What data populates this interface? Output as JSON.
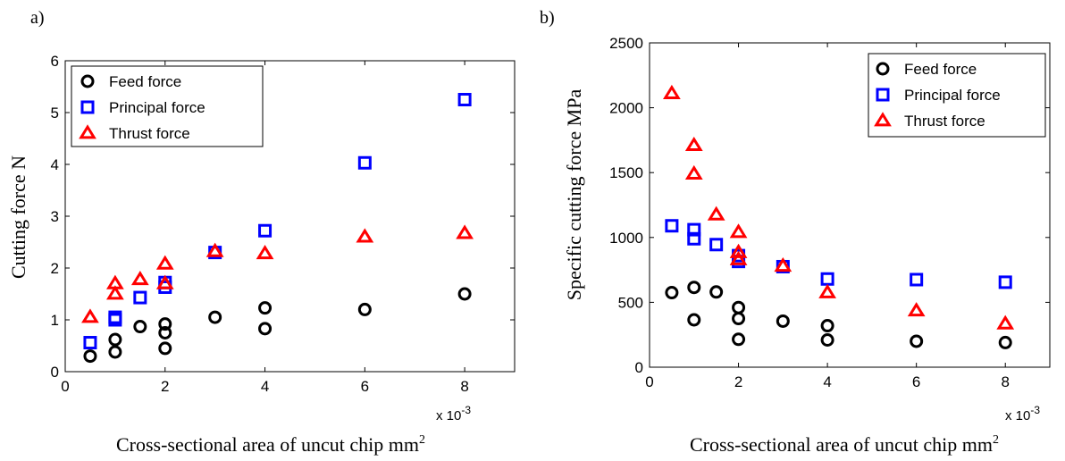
{
  "chart_data": [
    {
      "type": "scatter",
      "panel_label": "a)",
      "xlabel": "Cross-sectional area of uncut chip mm",
      "xlabel_sup": "2",
      "ylabel": "Cutting force  N",
      "x_multiplier": "x 10",
      "x_multiplier_exp": "-3",
      "xlim": [
        0,
        9
      ],
      "ylim": [
        0,
        6
      ],
      "xticks": [
        0,
        2,
        4,
        6,
        8
      ],
      "yticks": [
        0,
        1,
        2,
        3,
        4,
        5,
        6
      ],
      "legend_position": "top-left",
      "series": [
        {
          "name": "Feed force",
          "marker": "circle",
          "color": "#000000",
          "points": [
            [
              0.5,
              0.3
            ],
            [
              1,
              0.38
            ],
            [
              1,
              0.62
            ],
            [
              1.5,
              0.87
            ],
            [
              2,
              0.45
            ],
            [
              2,
              0.75
            ],
            [
              2,
              0.92
            ],
            [
              3,
              1.05
            ],
            [
              4,
              0.83
            ],
            [
              4,
              1.23
            ],
            [
              6,
              1.2
            ],
            [
              8,
              1.5
            ]
          ]
        },
        {
          "name": "Principal force",
          "marker": "square",
          "color": "#0000ff",
          "points": [
            [
              0.5,
              0.56
            ],
            [
              1,
              1.0
            ],
            [
              1,
              1.05
            ],
            [
              1.5,
              1.43
            ],
            [
              2,
              1.63
            ],
            [
              2,
              1.72
            ],
            [
              3,
              2.3
            ],
            [
              4,
              2.72
            ],
            [
              6,
              4.03
            ],
            [
              8,
              5.25
            ]
          ]
        },
        {
          "name": "Thrust force",
          "marker": "triangle",
          "color": "#ff0000",
          "points": [
            [
              0.5,
              1.05
            ],
            [
              1,
              1.5
            ],
            [
              1,
              1.7
            ],
            [
              1.5,
              1.78
            ],
            [
              2,
              1.7
            ],
            [
              2,
              2.08
            ],
            [
              3,
              2.32
            ],
            [
              4,
              2.28
            ],
            [
              6,
              2.6
            ],
            [
              8,
              2.67
            ]
          ]
        }
      ]
    },
    {
      "type": "scatter",
      "panel_label": "b)",
      "xlabel": "Cross-sectional area of uncut chip mm",
      "xlabel_sup": "2",
      "ylabel": "Specific cutting force  MPa",
      "x_multiplier": "x 10",
      "x_multiplier_exp": "-3",
      "xlim": [
        0,
        9
      ],
      "ylim": [
        0,
        2500
      ],
      "xticks": [
        0,
        2,
        4,
        6,
        8
      ],
      "yticks": [
        0,
        500,
        1000,
        1500,
        2000,
        2500
      ],
      "legend_position": "top-right",
      "series": [
        {
          "name": "Feed force",
          "marker": "circle",
          "color": "#000000",
          "points": [
            [
              0.5,
              575
            ],
            [
              1,
              615
            ],
            [
              1,
              365
            ],
            [
              1.5,
              580
            ],
            [
              2,
              460
            ],
            [
              2,
              375
            ],
            [
              2,
              215
            ],
            [
              3,
              355
            ],
            [
              4,
              320
            ],
            [
              4,
              210
            ],
            [
              6,
              200
            ],
            [
              8,
              190
            ]
          ]
        },
        {
          "name": "Principal force",
          "marker": "square",
          "color": "#0000ff",
          "points": [
            [
              0.5,
              1090
            ],
            [
              1,
              1060
            ],
            [
              1,
              990
            ],
            [
              1.5,
              945
            ],
            [
              2,
              860
            ],
            [
              2,
              815
            ],
            [
              3,
              775
            ],
            [
              4,
              680
            ],
            [
              6,
              675
            ],
            [
              8,
              655
            ]
          ]
        },
        {
          "name": "Thrust force",
          "marker": "triangle",
          "color": "#ff0000",
          "points": [
            [
              0.5,
              2110
            ],
            [
              1,
              1710
            ],
            [
              1,
              1490
            ],
            [
              1.5,
              1175
            ],
            [
              2,
              1040
            ],
            [
              2,
              885
            ],
            [
              2,
              830
            ],
            [
              3,
              780
            ],
            [
              4,
              575
            ],
            [
              6,
              435
            ],
            [
              8,
              335
            ]
          ]
        }
      ]
    }
  ]
}
